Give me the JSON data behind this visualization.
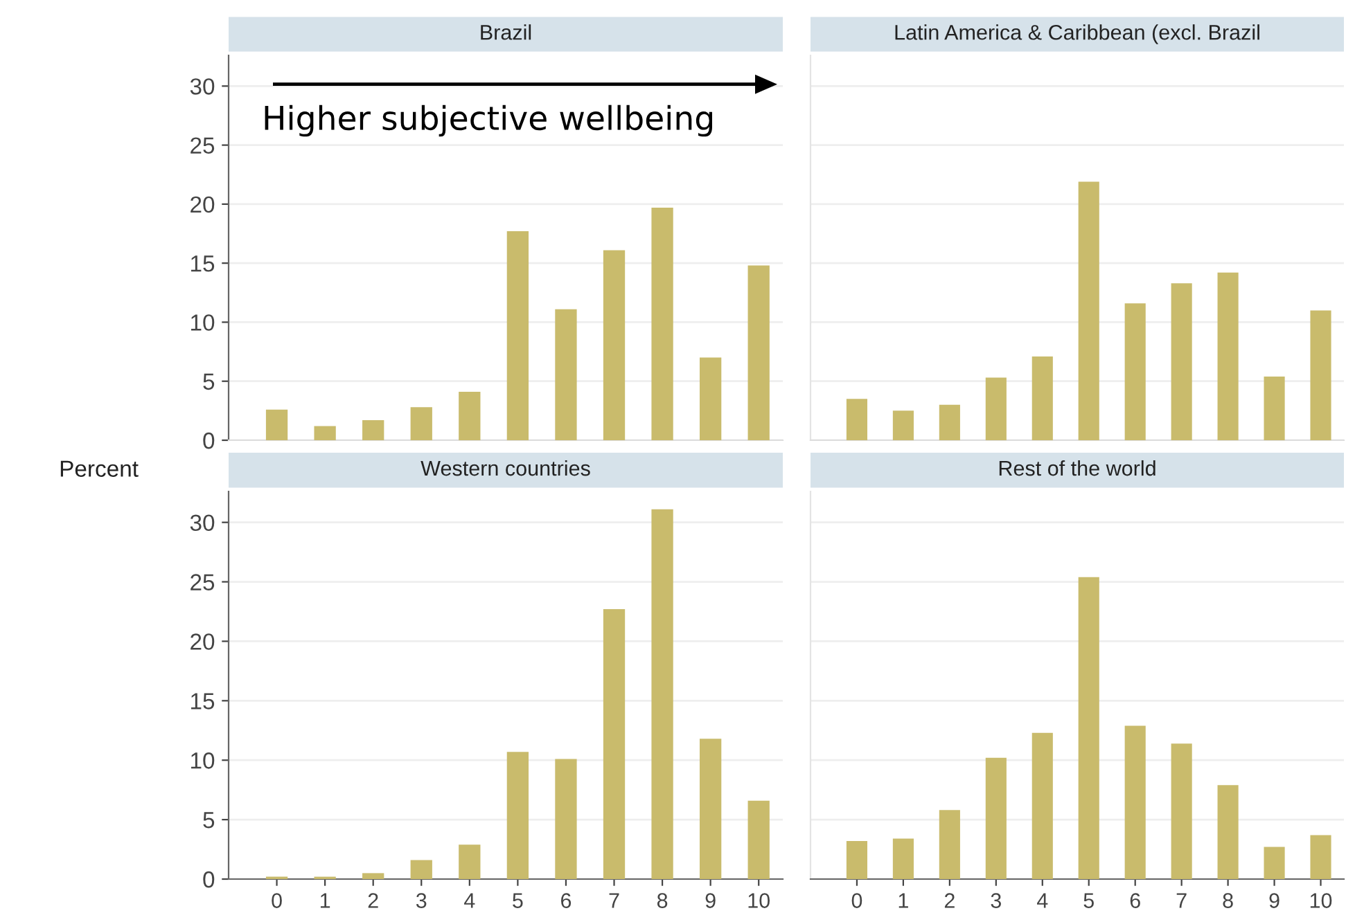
{
  "chart_data": [
    {
      "type": "bar",
      "title": "Brazil",
      "ylabel": "Percent",
      "categories": [
        "0",
        "1",
        "2",
        "3",
        "4",
        "5",
        "6",
        "7",
        "8",
        "9",
        "10"
      ],
      "values": [
        2.6,
        1.2,
        1.7,
        2.8,
        4.1,
        17.7,
        11.1,
        16.1,
        19.7,
        7.0,
        14.8
      ],
      "color": "#c9bb6c",
      "ylim": [
        0,
        32.6
      ],
      "yticks": [
        0,
        5,
        10,
        15,
        20,
        25,
        30
      ],
      "grid": "y",
      "tick_labels": "y",
      "annotations": [
        "Higher subjective wellbeing"
      ]
    },
    {
      "type": "bar",
      "title": "Latin America & Caribbean (excl. Brazil",
      "categories": [
        "0",
        "1",
        "2",
        "3",
        "4",
        "5",
        "6",
        "7",
        "8",
        "9",
        "10"
      ],
      "values": [
        3.5,
        2.5,
        3.0,
        5.3,
        7.1,
        21.9,
        11.6,
        13.3,
        14.2,
        5.4,
        11.0
      ],
      "color": "#c9bb6c",
      "ylim": [
        0,
        32.6
      ],
      "yticks": [
        0,
        5,
        10,
        15,
        20,
        25,
        30
      ],
      "grid": "y",
      "tick_labels": false
    },
    {
      "type": "bar",
      "title": "Western countries",
      "categories": [
        "0",
        "1",
        "2",
        "3",
        "4",
        "5",
        "6",
        "7",
        "8",
        "9",
        "10"
      ],
      "values": [
        0.2,
        0.2,
        0.5,
        1.6,
        2.9,
        10.7,
        10.1,
        22.7,
        31.1,
        11.8,
        6.6
      ],
      "color": "#c9bb6c",
      "ylim": [
        0,
        32.6
      ],
      "yticks": [
        0,
        5,
        10,
        15,
        20,
        25,
        30
      ],
      "grid": "y"
    },
    {
      "type": "bar",
      "title": "Rest of the world",
      "categories": [
        "0",
        "1",
        "2",
        "3",
        "4",
        "5",
        "6",
        "7",
        "8",
        "9",
        "10"
      ],
      "values": [
        3.2,
        3.4,
        5.8,
        10.2,
        12.3,
        25.4,
        12.9,
        11.4,
        7.9,
        2.7,
        3.7
      ],
      "color": "#c9bb6c",
      "ylim": [
        0,
        32.6
      ],
      "yticks": [
        0,
        5,
        10,
        15,
        20,
        25,
        30
      ],
      "grid": "y",
      "tick_labels": "x"
    }
  ]
}
